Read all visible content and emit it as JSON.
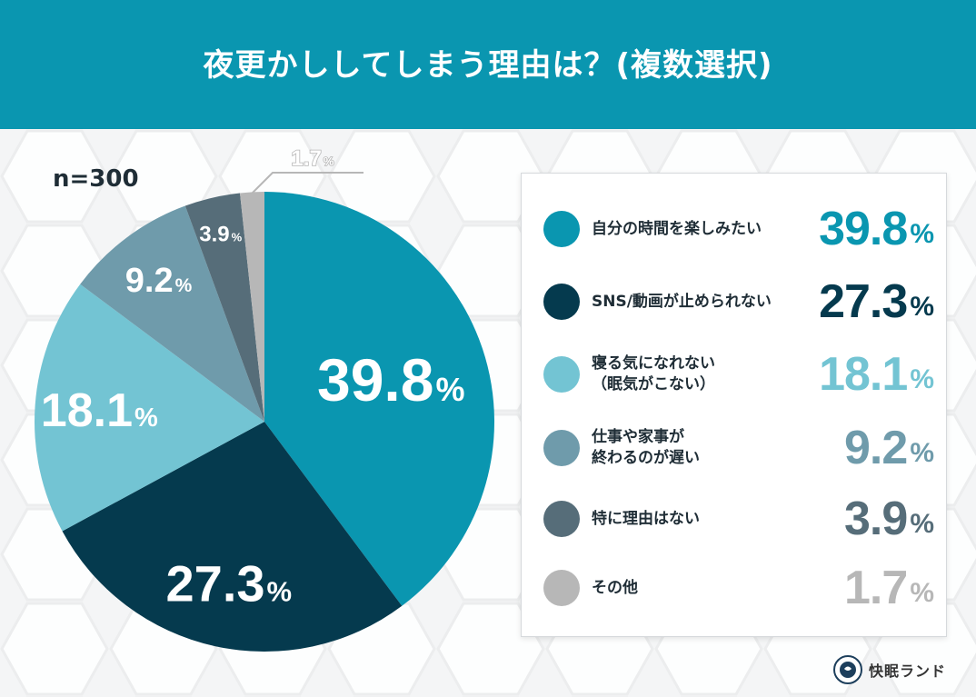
{
  "title": "夜更かししてしまう理由は？(複数選択)",
  "sample_size": "n=300",
  "brand": "快眠ランド",
  "percent_sign": "%",
  "colors": {
    "header": "#0a96b0",
    "slices": [
      "#0a96b0",
      "#053a4e",
      "#73c4d3",
      "#6f9bab",
      "#566d79",
      "#b7b7b7"
    ]
  },
  "chart_data": {
    "type": "pie",
    "title": "夜更かししてしまう理由は？(複数選択)",
    "categories": [
      "自分の時間を楽しみたい",
      "SNS/動画が止められない",
      "寝る気になれない\n（眠気がこない）",
      "仕事や家事が\n終わるのが遅い",
      "特に理由はない",
      "その他"
    ],
    "values": [
      39.8,
      27.3,
      18.1,
      9.2,
      3.9,
      1.7
    ],
    "data_labels": [
      "39.8",
      "27.3",
      "18.1",
      "9.2",
      "3.9",
      "1.7"
    ],
    "unit": "%"
  }
}
